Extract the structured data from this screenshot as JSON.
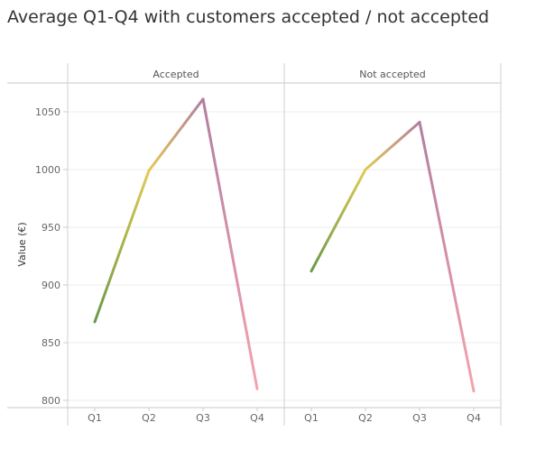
{
  "chart_data": {
    "type": "line",
    "title": "Average Q1-Q4 with customers accepted / not accepted",
    "ylabel": "Value (€)",
    "xlabel": "",
    "categories": [
      "Q1",
      "Q2",
      "Q3",
      "Q4"
    ],
    "ylim": [
      795,
      1075
    ],
    "yticks": [
      800,
      850,
      900,
      950,
      1000,
      1050
    ],
    "grid": true,
    "panels": [
      {
        "label": "Accepted",
        "values": [
          868,
          999,
          1061,
          810
        ]
      },
      {
        "label": "Not accepted",
        "values": [
          912,
          1000,
          1041,
          808
        ]
      }
    ],
    "point_colors": [
      "#6a9a48",
      "#e2ca55",
      "#b27da2",
      "#f5a3ad"
    ]
  }
}
